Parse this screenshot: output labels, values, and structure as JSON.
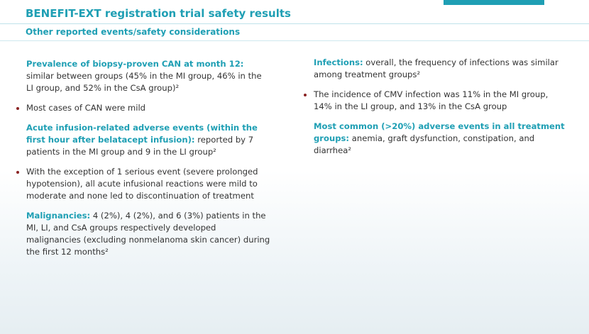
{
  "header": {
    "title": "BENEFIT-EXT registration trial safety results",
    "subtitle": "Other reported events/safety considerations"
  },
  "left_column": {
    "can": {
      "heading": "Prevalence of biopsy-proven CAN at month 12:",
      "text": " similar between groups (45% in the MI group, 46% in the LI group, and 52% in the CsA group)²"
    },
    "can_bullet": "Most cases of CAN were mild",
    "infusion": {
      "heading": "Acute infusion-related adverse events (within the first hour after belatacept infusion):",
      "text": " reported by 7 patients in the MI group and 9 in the LI group²"
    },
    "infusion_bullet": "With the exception of 1 serious event (severe prolonged hypotension), all acute infusional reactions were mild to moderate and none led to discontinuation of treatment",
    "malignancies": {
      "heading": "Malignancies:",
      "text": " 4 (2%), 4 (2%), and 6 (3%) patients in the MI, LI, and CsA groups respectively developed malignancies (excluding nonmelanoma skin cancer) during the first 12 months²"
    }
  },
  "right_column": {
    "infections": {
      "heading": "Infections:",
      "text": " overall, the frequency of infections was similar among treatment groups²"
    },
    "cmv_bullet": "The incidence of CMV infection was 11% in the MI group, 14% in the LI group, and 13% in the CsA group",
    "common": {
      "heading": "Most common (>20%) adverse events in all treatment groups:",
      "text": " anemia, graft dysfunction, constipation, and diarrhea²"
    }
  },
  "colors": {
    "accent": "#1f9fb4",
    "bullet": "#8a2323",
    "body_text": "#333333"
  }
}
